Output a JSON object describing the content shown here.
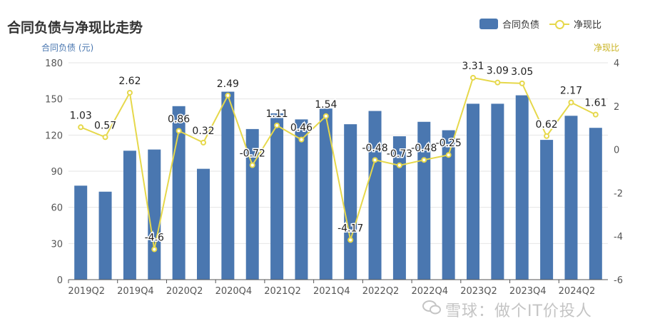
{
  "chart_data": {
    "type": "bar",
    "title": "合同负债与净现比走势",
    "legend_position": "top-right",
    "grid": true,
    "categories": [
      "2019Q2",
      "2019Q3",
      "2019Q4",
      "2020Q1",
      "2020Q2",
      "2020Q3",
      "2020Q4",
      "2021Q1",
      "2021Q2",
      "2021Q3",
      "2021Q4",
      "2022Q1",
      "2022Q2",
      "2022Q3",
      "2022Q4",
      "2023Q1",
      "2023Q2",
      "2023Q3",
      "2023Q4",
      "2024Q1",
      "2024Q2",
      "2024Q3"
    ],
    "x_tick_labels": [
      "2019Q2",
      "2019Q4",
      "2020Q2",
      "2020Q4",
      "2021Q2",
      "2021Q4",
      "2022Q2",
      "2022Q4",
      "2023Q2",
      "2023Q4",
      "2024Q2"
    ],
    "left_axis": {
      "name": "合同负债 (元)",
      "ylim": [
        0,
        180
      ],
      "ticks": [
        0,
        30,
        60,
        90,
        120,
        150,
        180
      ]
    },
    "right_axis": {
      "name": "净现比",
      "ylim": [
        -6,
        4
      ],
      "ticks": [
        -6,
        -4,
        -2,
        0,
        2,
        4
      ]
    },
    "series": [
      {
        "name": "合同负债",
        "type": "bar",
        "axis": "left",
        "color": "#4a77b0",
        "values": [
          78,
          73,
          107,
          108,
          144,
          92,
          156,
          125,
          138,
          133,
          142,
          129,
          140,
          119,
          131,
          124,
          146,
          146,
          153,
          116,
          136,
          126
        ]
      },
      {
        "name": "净现比",
        "type": "line",
        "axis": "right",
        "color": "#e6d84b",
        "values": [
          1.03,
          0.57,
          2.62,
          -4.6,
          0.86,
          0.32,
          2.49,
          -0.72,
          1.11,
          0.46,
          1.54,
          -4.17,
          -0.48,
          -0.73,
          -0.48,
          -0.25,
          3.31,
          3.09,
          3.05,
          0.62,
          2.17,
          1.61
        ],
        "labels": [
          "1.03",
          "0.57",
          "2.62",
          "-4.6",
          "0.86",
          "0.32",
          "2.49",
          "-0.72",
          "1.11",
          "0.46",
          "1.54",
          "-4.17",
          "-0.48",
          "-0.73",
          "-0.48",
          "-0.25",
          "3.31",
          "3.09",
          "3.05",
          "0.62",
          "2.17",
          "1.61"
        ]
      }
    ]
  },
  "watermark": "雪球：做个IT价投人"
}
